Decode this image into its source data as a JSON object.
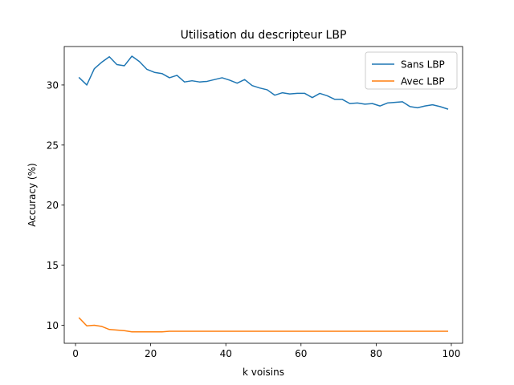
{
  "chart_data": {
    "type": "line",
    "title": "Utilisation du descripteur LBP",
    "xlabel": "k voisins",
    "ylabel": "Accuracy (%)",
    "xlim": [
      -3,
      103
    ],
    "ylim": [
      8.5,
      33.2
    ],
    "xticks": [
      0,
      20,
      40,
      60,
      80,
      100
    ],
    "yticks": [
      10,
      15,
      20,
      25,
      30
    ],
    "legend_position": "top-right",
    "grid": false,
    "x": [
      1,
      3,
      5,
      7,
      9,
      11,
      13,
      15,
      17,
      19,
      21,
      23,
      25,
      27,
      29,
      31,
      33,
      35,
      37,
      39,
      41,
      43,
      45,
      47,
      49,
      51,
      53,
      55,
      57,
      59,
      61,
      63,
      65,
      67,
      69,
      71,
      73,
      75,
      77,
      79,
      81,
      83,
      85,
      87,
      89,
      91,
      93,
      95,
      97,
      99
    ],
    "series": [
      {
        "name": "Sans LBP",
        "color": "#1f77b4",
        "values": [
          30.6,
          30.0,
          31.35,
          31.9,
          32.35,
          31.7,
          31.6,
          32.4,
          31.95,
          31.3,
          31.05,
          30.95,
          30.6,
          30.8,
          30.25,
          30.35,
          30.25,
          30.3,
          30.45,
          30.6,
          30.4,
          30.15,
          30.45,
          29.95,
          29.75,
          29.6,
          29.15,
          29.35,
          29.25,
          29.3,
          29.3,
          28.95,
          29.3,
          29.1,
          28.8,
          28.8,
          28.45,
          28.5,
          28.4,
          28.45,
          28.25,
          28.5,
          28.55,
          28.6,
          28.2,
          28.1,
          28.25,
          28.35,
          28.2,
          28.0
        ]
      },
      {
        "name": "Avec LBP",
        "color": "#ff7f0e",
        "values": [
          10.6,
          9.95,
          10.0,
          9.9,
          9.65,
          9.6,
          9.55,
          9.45,
          9.45,
          9.45,
          9.45,
          9.45,
          9.5,
          9.5,
          9.5,
          9.5,
          9.5,
          9.5,
          9.5,
          9.5,
          9.5,
          9.5,
          9.5,
          9.5,
          9.5,
          9.5,
          9.5,
          9.5,
          9.5,
          9.5,
          9.5,
          9.5,
          9.5,
          9.5,
          9.5,
          9.5,
          9.5,
          9.5,
          9.5,
          9.5,
          9.5,
          9.5,
          9.5,
          9.5,
          9.5,
          9.5,
          9.5,
          9.5,
          9.5,
          9.5
        ]
      }
    ]
  }
}
